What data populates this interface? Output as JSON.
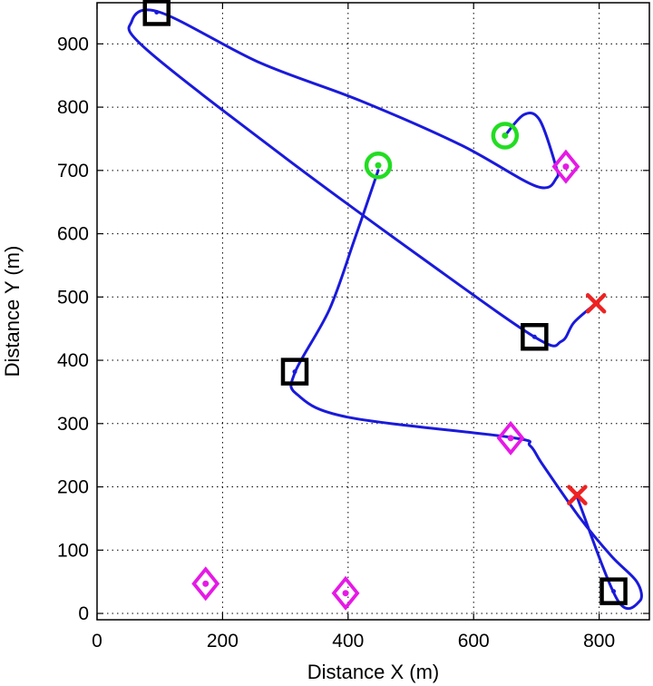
{
  "chart_data": {
    "type": "scatter",
    "title": "",
    "xlabel": "Distance X (m)",
    "ylabel": "Distance Y (m)",
    "xlim": [
      0,
      880
    ],
    "ylim": [
      -10,
      965
    ],
    "xticks": [
      0,
      200,
      400,
      600,
      800
    ],
    "yticks": [
      0,
      100,
      200,
      300,
      400,
      500,
      600,
      700,
      800,
      900
    ],
    "grid": true,
    "legend": "none",
    "path": {
      "color": "#1a1adb",
      "points": [
        [
          650,
          755
        ],
        [
          680,
          788
        ],
        [
          705,
          780
        ],
        [
          730,
          710
        ],
        [
          732,
          688
        ],
        [
          700,
          675
        ],
        [
          580,
          740
        ],
        [
          420,
          810
        ],
        [
          260,
          870
        ],
        [
          100,
          950
        ],
        [
          55,
          935
        ],
        [
          80,
          890
        ],
        [
          300,
          720
        ],
        [
          520,
          560
        ],
        [
          700,
          435
        ],
        [
          740,
          430
        ],
        [
          760,
          460
        ],
        [
          795,
          490
        ]
      ]
    },
    "path2": {
      "color": "#1a1adb",
      "points": [
        [
          448,
          700
        ],
        [
          410,
          590
        ],
        [
          370,
          480
        ],
        [
          315,
          380
        ],
        [
          320,
          345
        ],
        [
          400,
          310
        ],
        [
          660,
          278
        ],
        [
          690,
          265
        ],
        [
          710,
          235
        ],
        [
          770,
          150
        ],
        [
          820,
          90
        ],
        [
          860,
          50
        ],
        [
          865,
          20
        ],
        [
          830,
          20
        ],
        [
          770,
          170
        ],
        [
          765,
          190
        ]
      ]
    },
    "series": [
      {
        "marker": "square",
        "color": "#000000",
        "points": [
          [
            95,
            950
          ],
          [
            697,
            437
          ],
          [
            315,
            382
          ],
          [
            823,
            35
          ]
        ]
      },
      {
        "marker": "circle",
        "color": "#22dd22",
        "points": [
          [
            448,
            708
          ],
          [
            650,
            755
          ]
        ]
      },
      {
        "marker": "diamond",
        "color": "#e619e6",
        "points": [
          [
            747,
            706
          ],
          [
            659,
            277
          ],
          [
            173,
            47
          ],
          [
            396,
            32
          ]
        ]
      },
      {
        "marker": "x",
        "color": "#ee2222",
        "points": [
          [
            795,
            490
          ],
          [
            765,
            187
          ]
        ]
      }
    ]
  }
}
